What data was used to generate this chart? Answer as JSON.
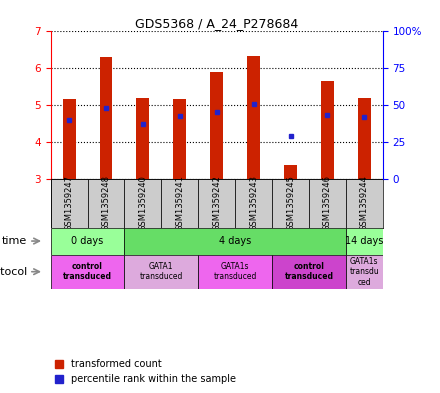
{
  "title": "GDS5368 / A_24_P278684",
  "samples": [
    "GSM1359247",
    "GSM1359248",
    "GSM1359240",
    "GSM1359241",
    "GSM1359242",
    "GSM1359243",
    "GSM1359245",
    "GSM1359246",
    "GSM1359244"
  ],
  "bar_bottom": [
    3.0,
    3.0,
    3.0,
    3.0,
    3.0,
    3.0,
    3.0,
    3.0,
    3.0
  ],
  "bar_top": [
    5.15,
    6.3,
    5.2,
    5.15,
    5.9,
    6.32,
    3.37,
    5.65,
    5.2
  ],
  "percentile_values": [
    4.6,
    4.92,
    4.48,
    4.7,
    4.82,
    5.02,
    4.15,
    4.72,
    4.68
  ],
  "ylim_left": [
    3,
    7
  ],
  "ylim_right": [
    0,
    100
  ],
  "yticks_left": [
    3,
    4,
    5,
    6,
    7
  ],
  "yticks_right": [
    0,
    25,
    50,
    75,
    100
  ],
  "ytick_labels_right": [
    "0",
    "25",
    "50",
    "75",
    "100%"
  ],
  "bar_color": "#cc2200",
  "percentile_color": "#2222cc",
  "time_groups": [
    {
      "label": "0 days",
      "start": 0,
      "end": 2,
      "color": "#99ff99"
    },
    {
      "label": "4 days",
      "start": 2,
      "end": 8,
      "color": "#66dd66"
    },
    {
      "label": "14 days",
      "start": 8,
      "end": 9,
      "color": "#99ff99"
    }
  ],
  "protocol_groups": [
    {
      "label": "control\ntransduced",
      "start": 0,
      "end": 2,
      "color": "#ee66ee",
      "bold": true
    },
    {
      "label": "GATA1\ntransduced",
      "start": 2,
      "end": 4,
      "color": "#ddaadd",
      "bold": false
    },
    {
      "label": "GATA1s\ntransduced",
      "start": 4,
      "end": 6,
      "color": "#ee66ee",
      "bold": false
    },
    {
      "label": "control\ntransduced",
      "start": 6,
      "end": 8,
      "color": "#cc44cc",
      "bold": true
    },
    {
      "label": "GATA1s\ntransdu\nced",
      "start": 8,
      "end": 9,
      "color": "#ddaadd",
      "bold": false
    }
  ],
  "sample_bg_color": "#cccccc",
  "legend_red_label": "transformed count",
  "legend_blue_label": "percentile rank within the sample",
  "bar_width": 0.35
}
